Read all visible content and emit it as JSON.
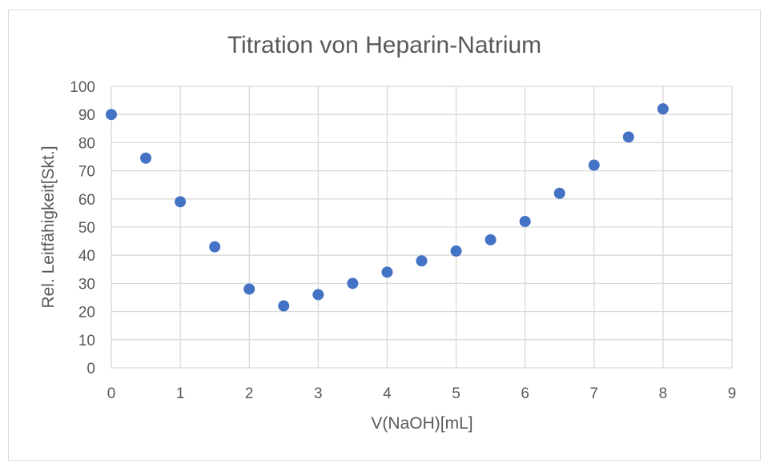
{
  "chart_data": {
    "type": "scatter",
    "title": "Titration von Heparin-Natrium",
    "xlabel": "V(NaOH)[mL]",
    "ylabel": "Rel. Leitfähigkeit[Skt.]",
    "xlim": [
      0,
      9
    ],
    "ylim": [
      0,
      100
    ],
    "x_ticks": [
      0,
      1,
      2,
      3,
      4,
      5,
      6,
      7,
      8,
      9
    ],
    "y_ticks": [
      0,
      10,
      20,
      30,
      40,
      50,
      60,
      70,
      80,
      90,
      100
    ],
    "grid": true,
    "legend": "none",
    "marker_color": "#4472c4",
    "series": [
      {
        "x": [
          0,
          0.5,
          1,
          1.5,
          2,
          2.5,
          3,
          3.5,
          4,
          4.5,
          5,
          5.5,
          6,
          6.5,
          7,
          7.5,
          8
        ],
        "y": [
          90,
          74.5,
          59,
          43,
          28,
          22,
          26,
          30,
          34,
          38,
          41.5,
          45.5,
          52,
          62,
          72,
          82,
          92
        ]
      }
    ]
  }
}
